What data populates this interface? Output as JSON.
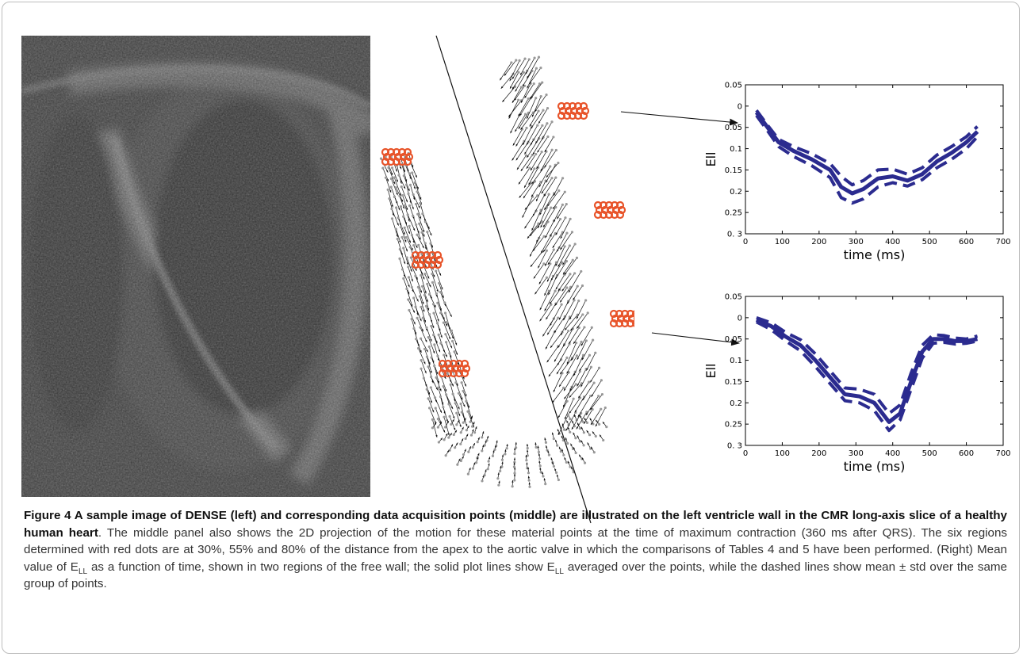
{
  "figure": {
    "caption_lead": "Figure 4 A sample image of DENSE (left) and corresponding data acquisition points (middle) are illustrated on the left ventricle wall in the CMR long-axis slice of a healthy human heart",
    "caption_rest_1": ". The middle panel also shows the 2D projection of the motion for these material points at the time of maximum contraction (360 ms after QRS). The six regions determined with red dots are at 30%, 55% and 80% of the distance from the apex to the aortic valve in which the comparisons of Tables 4 and 5 have been performed. (Right) Mean value of E",
    "sub_1": "LL",
    "caption_rest_2": " as a function of time, shown in two regions of the free wall; the solid plot lines show E",
    "sub_2": "LL",
    "caption_rest_3": " averaged over the points, while the dashed lines show mean ± std over the same group of points."
  },
  "colors": {
    "line": "#2b2b8f",
    "region_marker": "#e8542a",
    "vector": "#111111",
    "node": "#999999"
  },
  "chart_data": [
    {
      "type": "line",
      "xlabel": "time (ms)",
      "ylabel": "Ell",
      "xlim": [
        0,
        700
      ],
      "ylim": [
        -0.05,
        0.3
      ],
      "y_inverted": true,
      "xticks": [
        "0",
        "100",
        "200",
        "300",
        "400",
        "500",
        "600",
        "700"
      ],
      "yticks": [
        "0.05",
        "0",
        "0.05",
        "0.1",
        "0.15",
        "0.2",
        "0.25",
        "0. 3"
      ],
      "x": [
        30,
        60,
        90,
        130,
        180,
        230,
        260,
        290,
        320,
        360,
        400,
        440,
        480,
        520,
        560,
        600,
        630
      ],
      "series": [
        {
          "style": "solid",
          "values": [
            0.015,
            0.05,
            0.085,
            0.105,
            0.125,
            0.15,
            0.19,
            0.205,
            0.195,
            0.17,
            0.165,
            0.175,
            0.16,
            0.13,
            0.11,
            0.085,
            0.06
          ]
        },
        {
          "style": "dashed",
          "values": [
            0.01,
            0.045,
            0.078,
            0.095,
            0.112,
            0.135,
            0.165,
            0.185,
            0.175,
            0.15,
            0.148,
            0.16,
            0.145,
            0.115,
            0.095,
            0.072,
            0.048
          ]
        },
        {
          "style": "dashed",
          "values": [
            0.022,
            0.058,
            0.095,
            0.118,
            0.14,
            0.168,
            0.215,
            0.228,
            0.218,
            0.19,
            0.18,
            0.188,
            0.173,
            0.145,
            0.125,
            0.1,
            0.072
          ]
        }
      ]
    },
    {
      "type": "line",
      "xlabel": "time (ms)",
      "ylabel": "Ell",
      "xlim": [
        0,
        700
      ],
      "ylim": [
        -0.05,
        0.3
      ],
      "y_inverted": true,
      "xticks": [
        "0",
        "100",
        "200",
        "300",
        "400",
        "500",
        "600",
        "700"
      ],
      "yticks": [
        "0.05",
        "0",
        "0.05",
        "0.1",
        "0.15",
        "0.2",
        "0.25",
        "0. 3"
      ],
      "x": [
        30,
        70,
        110,
        150,
        190,
        230,
        270,
        310,
        350,
        390,
        420,
        450,
        480,
        510,
        540,
        570,
        600,
        630
      ],
      "series": [
        {
          "style": "solid",
          "values": [
            0.005,
            0.02,
            0.045,
            0.065,
            0.1,
            0.14,
            0.18,
            0.185,
            0.2,
            0.245,
            0.225,
            0.15,
            0.08,
            0.05,
            0.05,
            0.055,
            0.055,
            0.05
          ]
        },
        {
          "style": "dashed",
          "values": [
            0.0,
            0.012,
            0.035,
            0.052,
            0.085,
            0.125,
            0.165,
            0.168,
            0.18,
            0.225,
            0.205,
            0.13,
            0.065,
            0.04,
            0.042,
            0.048,
            0.05,
            0.043
          ]
        },
        {
          "style": "dashed",
          "values": [
            0.01,
            0.028,
            0.055,
            0.078,
            0.115,
            0.155,
            0.195,
            0.2,
            0.218,
            0.265,
            0.24,
            0.168,
            0.095,
            0.06,
            0.058,
            0.062,
            0.06,
            0.055
          ]
        }
      ]
    }
  ]
}
